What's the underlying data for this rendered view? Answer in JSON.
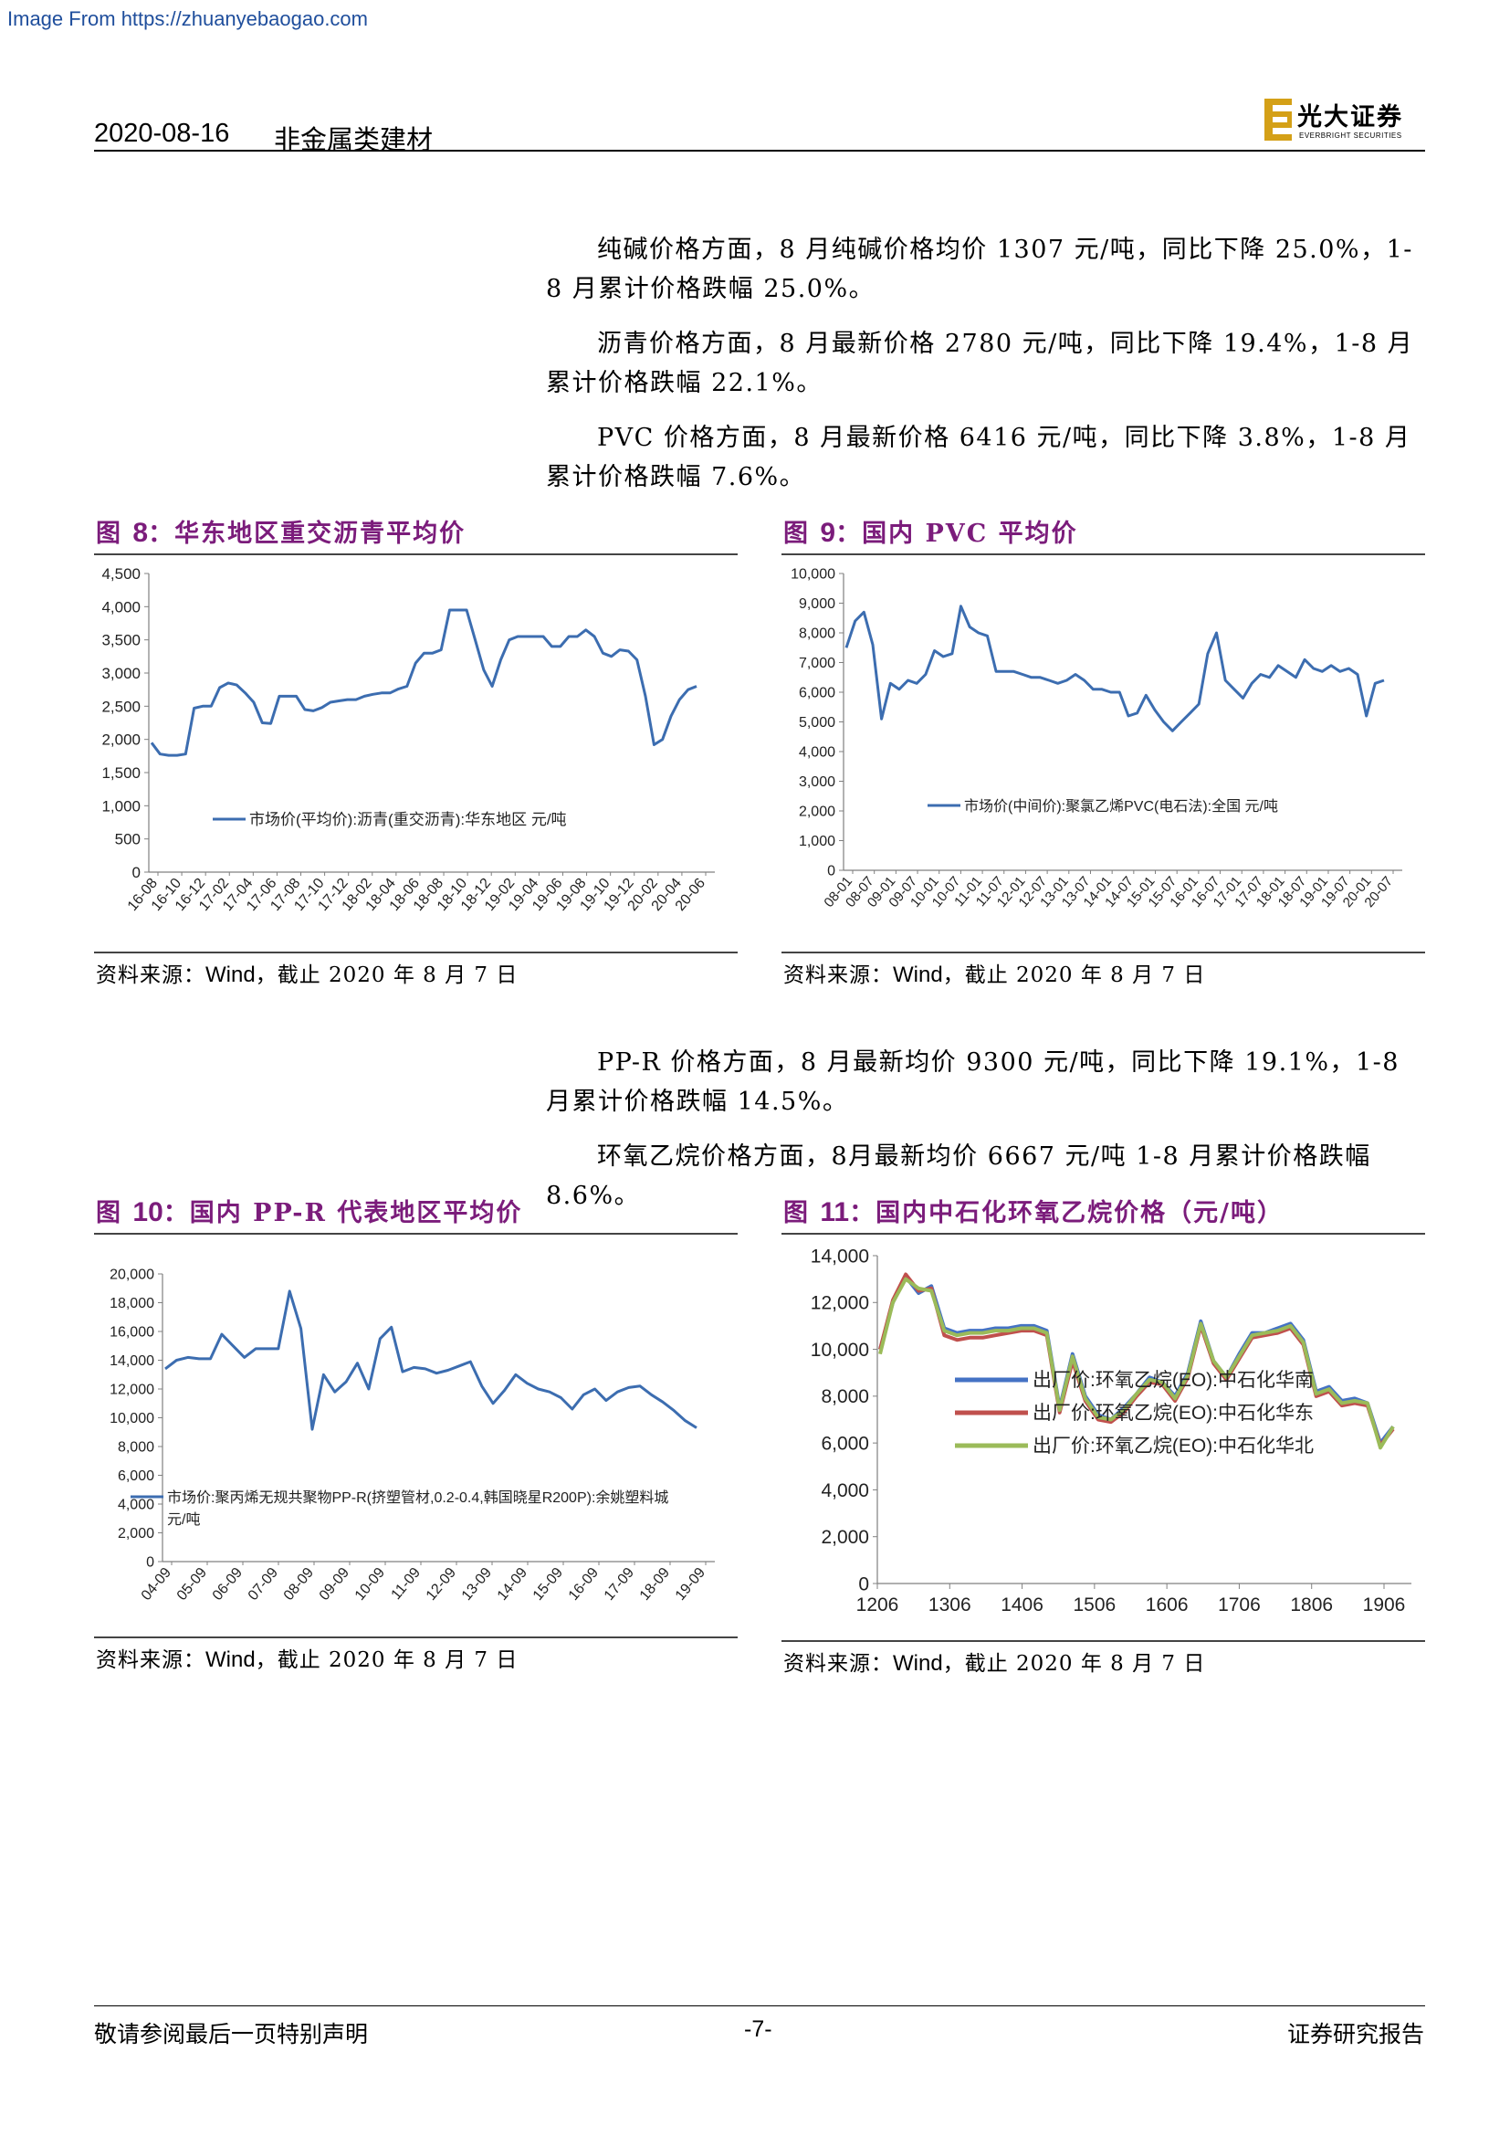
{
  "watermark": "Image From https://zhuanyebaogao.com",
  "header": {
    "date": "2020-08-16",
    "sector": "非金属类建材",
    "logo_cn": "光大证券",
    "logo_en": "EVERBRIGHT SECURITIES"
  },
  "paragraphs": {
    "p1": "纯碱价格方面，8 月纯碱价格均价 1307 元/吨，同比下降 25.0%，1-8 月累计价格跌幅 25.0%。",
    "p2": "沥青价格方面，8 月最新价格 2780 元/吨，同比下降 19.4%，1-8 月累计价格跌幅 22.1%。",
    "p3": "PVC 价格方面，8 月最新价格 6416 元/吨，同比下降 3.8%，1-8 月累计价格跌幅 7.6%。",
    "p4": "PP-R 价格方面，8 月最新均价 9300 元/吨，同比下降 19.1%，1-8 月累计价格跌幅 14.5%。",
    "p5": "环氧乙烷价格方面，8月最新均价 6667 元/吨 1-8 月累计价格跌幅 8.6%。"
  },
  "figures": {
    "f8": {
      "label": "图 ",
      "num": "8",
      "title": "：华东地区重交沥青平均价"
    },
    "f9": {
      "label": "图 ",
      "num": "9",
      "title": "：国内 PVC 平均价"
    },
    "f10": {
      "label": "图 ",
      "num": "10",
      "title": "：国内 PP-R 代表地区平均价"
    },
    "f11": {
      "label": "图 ",
      "num": "11",
      "title": "：国内中石化环氧乙烷价格（元/吨）"
    }
  },
  "source": {
    "prefix": "资料来源：",
    "wind": "Wind",
    "suffix": "，截止 2020 年 8 月 7 日"
  },
  "footer": {
    "left": "敬请参阅最后一页特别声明",
    "center": "-7-",
    "right": "证券研究报告"
  },
  "chart_data": [
    {
      "id": "f8",
      "type": "line",
      "ylim": [
        0,
        4500
      ],
      "yticks": [
        0,
        500,
        1000,
        1500,
        2000,
        2500,
        3000,
        3500,
        4000,
        4500
      ],
      "ytick_labels": [
        "0",
        "500",
        "1,000",
        "1,500",
        "2,000",
        "2,500",
        "3,000",
        "3,500",
        "4,000",
        "4,500"
      ],
      "x_labels": [
        "16-08",
        "16-10",
        "16-12",
        "17-02",
        "17-04",
        "17-06",
        "17-08",
        "17-10",
        "17-12",
        "18-02",
        "18-04",
        "18-06",
        "18-08",
        "18-10",
        "18-12",
        "19-02",
        "19-04",
        "19-06",
        "19-08",
        "19-10",
        "19-12",
        "20-02",
        "20-04",
        "20-06"
      ],
      "legend": "市场价(平均价):沥青(重交沥青):华东地区 元/吨",
      "color": "#3c6db0",
      "series": [
        {
          "name": "市场价(平均价):沥青(重交沥青):华东地区 元/吨",
          "values": [
            1950,
            1780,
            1760,
            1760,
            1780,
            2470,
            2500,
            2500,
            2780,
            2850,
            2820,
            2700,
            2560,
            2250,
            2240,
            2650,
            2650,
            2650,
            2450,
            2430,
            2480,
            2560,
            2580,
            2600,
            2600,
            2650,
            2680,
            2700,
            2700,
            2760,
            2800,
            3150,
            3300,
            3300,
            3350,
            3950,
            3950,
            3950,
            3500,
            3050,
            2800,
            3200,
            3500,
            3550,
            3550,
            3550,
            3550,
            3400,
            3400,
            3550,
            3550,
            3650,
            3550,
            3300,
            3250,
            3350,
            3330,
            3200,
            2650,
            1920,
            2000,
            2350,
            2600,
            2750,
            2800
          ]
        }
      ]
    },
    {
      "id": "f9",
      "type": "line",
      "ylim": [
        0,
        10000
      ],
      "yticks": [
        0,
        1000,
        2000,
        3000,
        4000,
        5000,
        6000,
        7000,
        8000,
        9000,
        10000
      ],
      "ytick_labels": [
        "0",
        "1,000",
        "2,000",
        "3,000",
        "4,000",
        "5,000",
        "6,000",
        "7,000",
        "8,000",
        "9,000",
        "10,000"
      ],
      "x_labels": [
        "08-01",
        "08-07",
        "09-01",
        "09-07",
        "10-01",
        "10-07",
        "11-01",
        "11-07",
        "12-01",
        "12-07",
        "13-01",
        "13-07",
        "14-01",
        "14-07",
        "15-01",
        "15-07",
        "16-01",
        "16-07",
        "17-01",
        "17-07",
        "18-01",
        "18-07",
        "19-01",
        "19-07",
        "20-01",
        "20-07"
      ],
      "legend": "市场价(中间价):聚氯乙烯PVC(电石法):全国 元/吨",
      "color": "#3c6db0",
      "series": [
        {
          "name": "市场价(中间价):聚氯乙烯PVC(电石法):全国 元/吨",
          "values": [
            7500,
            8400,
            8700,
            7600,
            5100,
            6300,
            6100,
            6400,
            6300,
            6600,
            7400,
            7200,
            7300,
            8900,
            8200,
            8000,
            7900,
            6700,
            6700,
            6700,
            6600,
            6500,
            6500,
            6400,
            6300,
            6400,
            6600,
            6400,
            6100,
            6100,
            6000,
            6000,
            5200,
            5300,
            5900,
            5400,
            5000,
            4700,
            5000,
            5300,
            5600,
            7300,
            8000,
            6400,
            6100,
            5800,
            6300,
            6600,
            6500,
            6900,
            6700,
            6500,
            7100,
            6800,
            6700,
            6900,
            6700,
            6800,
            6600,
            5200,
            6300,
            6400
          ]
        }
      ]
    },
    {
      "id": "f10",
      "type": "line",
      "ylim": [
        0,
        20000
      ],
      "yticks": [
        0,
        2000,
        4000,
        6000,
        8000,
        10000,
        12000,
        14000,
        16000,
        18000,
        20000
      ],
      "ytick_labels": [
        "0",
        "2,000",
        "4,000",
        "6,000",
        "8,000",
        "10,000",
        "12,000",
        "14,000",
        "16,000",
        "18,000",
        "20,000"
      ],
      "x_labels": [
        "04-09",
        "05-09",
        "06-09",
        "07-09",
        "08-09",
        "09-09",
        "10-09",
        "11-09",
        "12-09",
        "13-09",
        "14-09",
        "15-09",
        "16-09",
        "17-09",
        "18-09",
        "19-09"
      ],
      "legend": "市场价:聚丙烯无规共聚物PP-R(挤塑管材,0.2-0.4,韩国晓星R200P):余姚塑料城 元/吨",
      "color": "#3c6db0",
      "series": [
        {
          "name": "市场价:聚丙烯无规共聚物PP-R(挤塑管材,0.2-0.4,韩国晓星R200P):余姚塑料城 元/吨",
          "values": [
            13400,
            14000,
            14200,
            14100,
            14100,
            15800,
            15000,
            14200,
            14800,
            14800,
            14800,
            18800,
            16200,
            9200,
            13000,
            11800,
            12500,
            13800,
            12000,
            15500,
            16300,
            13200,
            13500,
            13400,
            13100,
            13300,
            13600,
            13900,
            12200,
            11000,
            11900,
            13000,
            12400,
            12000,
            11800,
            11400,
            10600,
            11600,
            12000,
            11200,
            11800,
            12100,
            12200,
            11600,
            11100,
            10500,
            9800,
            9300
          ]
        }
      ]
    },
    {
      "id": "f11",
      "type": "line",
      "ylim": [
        0,
        14000
      ],
      "yticks": [
        0,
        2000,
        4000,
        6000,
        8000,
        10000,
        12000,
        14000
      ],
      "ytick_labels": [
        "0",
        "2,000",
        "4,000",
        "6,000",
        "8,000",
        "10,000",
        "12,000",
        "14,000"
      ],
      "x_labels": [
        "1206",
        "1306",
        "1406",
        "1506",
        "1606",
        "1706",
        "1806",
        "1906"
      ],
      "series": [
        {
          "name": "出厂价:环氧乙烷(EO):中石化华南",
          "color": "#4472c4",
          "values": [
            10000,
            12000,
            13100,
            12400,
            12700,
            10900,
            10700,
            10800,
            10800,
            10900,
            10900,
            11000,
            11000,
            10800,
            7500,
            9800,
            8000,
            7200,
            7000,
            7500,
            8100,
            8800,
            8600,
            8000,
            9000,
            11200,
            9500,
            8800,
            9800,
            10700,
            10700,
            10900,
            11100,
            10400,
            8200,
            8400,
            7800,
            7900,
            7700,
            6000,
            6700
          ]
        },
        {
          "name": "出厂价:环氧乙烷(EO):中石化华东",
          "color": "#c0504d",
          "values": [
            10000,
            12100,
            13200,
            12500,
            12600,
            10600,
            10400,
            10500,
            10500,
            10600,
            10700,
            10800,
            10800,
            10600,
            7300,
            9500,
            7800,
            7000,
            6900,
            7300,
            8000,
            8600,
            8500,
            7800,
            8800,
            11000,
            9400,
            8700,
            9600,
            10500,
            10600,
            10700,
            10900,
            10200,
            8000,
            8200,
            7600,
            7700,
            7600,
            5900,
            6600
          ]
        },
        {
          "name": "出厂价:环氧乙烷(EO):中石化华北",
          "color": "#9bbb59",
          "values": [
            9800,
            12000,
            13000,
            12600,
            12500,
            10800,
            10600,
            10700,
            10700,
            10800,
            10800,
            10900,
            10900,
            10700,
            7400,
            9700,
            7900,
            7100,
            7000,
            7400,
            8100,
            8700,
            8600,
            7900,
            8900,
            11100,
            9500,
            8800,
            9700,
            10600,
            10700,
            10800,
            11000,
            10300,
            8100,
            8300,
            7700,
            7800,
            7700,
            5800,
            6700
          ]
        }
      ]
    }
  ]
}
